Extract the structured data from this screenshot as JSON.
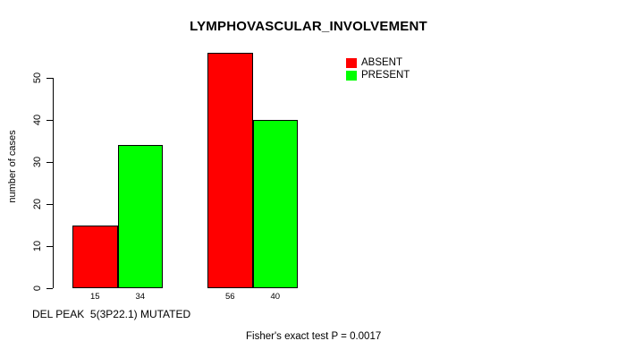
{
  "chart_data": {
    "type": "bar",
    "title": "LYMPHOVASCULAR_INVOLVEMENT",
    "ylabel": "number of cases",
    "xlabel": "DEL PEAK  5(3P22.1) MUTATED",
    "annotation": "Fisher's exact test P = 0.0017",
    "categories": [
      "",
      ""
    ],
    "series": [
      {
        "name": "ABSENT",
        "color": "#ff0000",
        "values": [
          15,
          56
        ]
      },
      {
        "name": "PRESENT",
        "color": "#00ff00",
        "values": [
          34,
          40
        ]
      }
    ],
    "bar_value_labels": [
      "15",
      "34",
      "56",
      "40"
    ],
    "yticks": [
      0,
      10,
      20,
      30,
      40,
      50
    ],
    "ylim": [
      0,
      56
    ],
    "grid": false,
    "legend_position": "top-right",
    "axis_color": "#000000",
    "background_color": "#ffffff"
  }
}
